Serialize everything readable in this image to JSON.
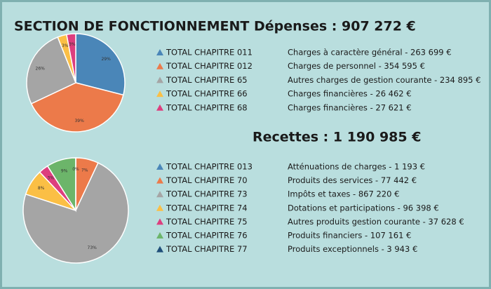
{
  "header": {
    "title": "SECTION DE FONCTIONNEMENT"
  },
  "chart_data": [
    {
      "type": "pie",
      "title": "Dépenses : 907 272 €",
      "categories": [
        "TOTAL CHAPITRE 011",
        "TOTAL CHAPITRE 012",
        "TOTAL CHAPITRE 65",
        "TOTAL CHAPITRE 66",
        "TOTAL CHAPITRE 68"
      ],
      "descriptions": [
        "Charges à caractère général - 263 699 €",
        "Charges de personnel - 354 595 €",
        "Autres charges de gestion courante - 234 895 €",
        "Charges financières - 26 462 €",
        "Charges financières - 27 621 €"
      ],
      "values": [
        29,
        39,
        26,
        3,
        3
      ],
      "value_labels": [
        "29%",
        "39%",
        "26%",
        "3%",
        "3%"
      ],
      "colors": [
        "#4a86b8",
        "#ec7a4a",
        "#a5a5a5",
        "#fbbf45",
        "#dd3e7e"
      ]
    },
    {
      "type": "pie",
      "title": "Recettes : 1 190 985 €",
      "categories": [
        "TOTAL CHAPITRE 013",
        "TOTAL CHAPITRE 70",
        "TOTAL CHAPITRE 73",
        "TOTAL CHAPITRE 74",
        "TOTAL CHAPITRE 75",
        "TOTAL CHAPITRE 76",
        "TOTAL CHAPITRE 77"
      ],
      "descriptions": [
        "Atténuations de charges - 1 193 €",
        "Produits des services - 77 442 €",
        "Impôts et taxes - 867 220 €",
        "Dotations et participations - 96 398 €",
        "Autres produits gestion courante - 37 628 €",
        "Produits financiers - 107 161 €",
        "Produits exceptionnels - 3 943 €"
      ],
      "values": [
        0,
        7,
        73,
        8,
        3,
        9,
        0
      ],
      "value_labels": [
        "0%",
        "7%",
        "73%",
        "8%",
        "3%",
        "9%",
        "0%"
      ],
      "colors": [
        "#4a86b8",
        "#ec7a4a",
        "#a5a5a5",
        "#fbbf45",
        "#dd3e7e",
        "#6cb56a",
        "#1f4e79"
      ]
    }
  ]
}
